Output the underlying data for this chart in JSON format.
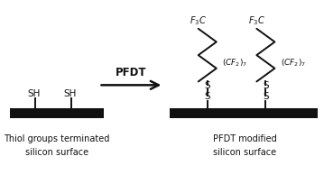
{
  "bg_color": "#ffffff",
  "surface_color": "#111111",
  "chain_color": "#111111",
  "text_color": "#111111",
  "arrow_label": "PFDT",
  "left_label_line1": "Thiol groups terminated",
  "left_label_line2": "silicon surface",
  "right_label_line1": "PFDT modified",
  "right_label_line2": "silicon surface",
  "fig_width": 3.59,
  "fig_height": 2.05,
  "dpi": 100
}
